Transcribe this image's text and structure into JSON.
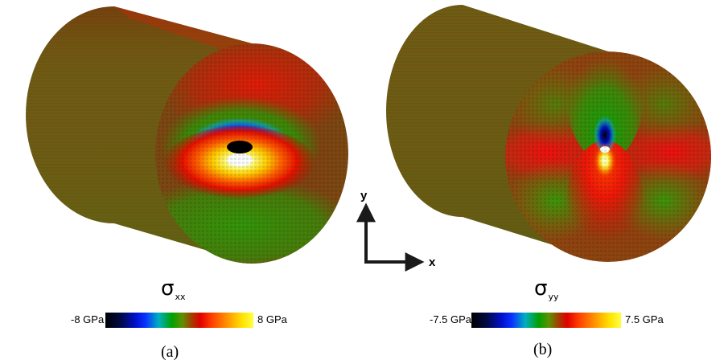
{
  "panels": [
    {
      "letter": "(a)",
      "sigma_symbol": "σ",
      "sigma_subscript": "xx",
      "colorbar": {
        "min_label": "-8 GPa",
        "max_label": "8 GPa"
      }
    },
    {
      "letter": "(b)",
      "sigma_symbol": "σ",
      "sigma_subscript": "yy",
      "colorbar": {
        "min_label": "-7.5 GPa",
        "max_label": "7.5 GPa"
      }
    }
  ],
  "axes": {
    "x_label": "x",
    "y_label": "y"
  },
  "colors": {
    "background_olive": "#6b5a10",
    "compressive_blue": "#0a20e0",
    "tensile_red": "#e01010",
    "neutral_green": "#2a9a10",
    "core_white": "#f0f0f0"
  }
}
